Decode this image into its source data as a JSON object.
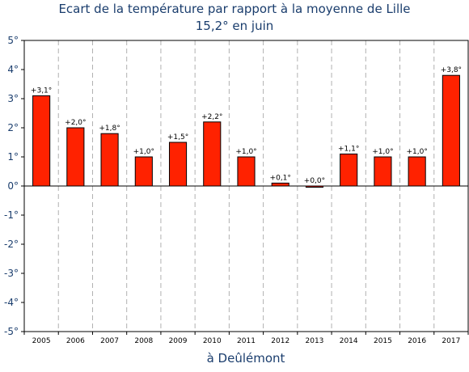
{
  "chart_data": {
    "type": "bar",
    "title": "Ecart de la température par rapport à la moyenne de Lille",
    "subtitle": "15,2° en juin",
    "xlabel": "à Deûlémont",
    "ylabel": "",
    "categories": [
      "2005",
      "2006",
      "2007",
      "2008",
      "2009",
      "2010",
      "2011",
      "2012",
      "2013",
      "2014",
      "2015",
      "2016",
      "2017"
    ],
    "values": [
      3.1,
      2.0,
      1.8,
      1.0,
      1.5,
      2.2,
      1.0,
      0.1,
      0.0,
      1.1,
      1.0,
      1.0,
      3.8
    ],
    "data_labels": [
      "+3,1°",
      "+2,0°",
      "+1,8°",
      "+1,0°",
      "+1,5°",
      "+2,2°",
      "+1,0°",
      "+0,1°",
      "+0,0°",
      "+1,1°",
      "+1,0°",
      "+1,0°",
      "+3,8°"
    ],
    "ylim": [
      -5,
      5
    ],
    "yticks": [
      5,
      4,
      3,
      2,
      1,
      0,
      -1,
      -2,
      -3,
      -4,
      -5
    ],
    "ytick_labels": [
      "5°",
      "4°",
      "3°",
      "2°",
      "1°",
      "0°",
      "-1°",
      "-2°",
      "-3°",
      "-4°",
      "-5°"
    ],
    "grid": "vertical dashed",
    "legend": "none",
    "colors": {
      "bar": "#ff2200",
      "bar_edge": "#000000",
      "text": "#1a3d6d",
      "grid": "#b0b0b0"
    }
  }
}
